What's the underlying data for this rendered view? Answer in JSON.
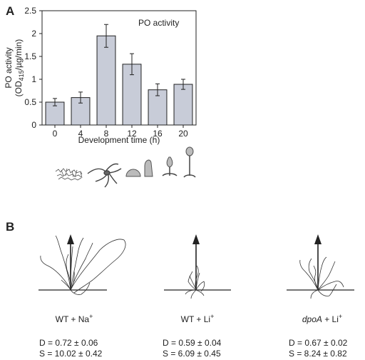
{
  "panel_a": {
    "label": "A"
  },
  "panel_b": {
    "label": "B"
  },
  "chart_data": {
    "type": "bar",
    "title": "PO activity",
    "xlabel": "Development  time (h)",
    "ylabel_line1": "PO activity",
    "ylabel_line2_prefix": "(OD",
    "ylabel_line2_sub": "415",
    "ylabel_line2_suffix": "/µg/min)",
    "categories": [
      "0",
      "4",
      "8",
      "12",
      "16",
      "20"
    ],
    "values": [
      0.5,
      0.6,
      1.95,
      1.33,
      0.77,
      0.89
    ],
    "errors": [
      0.08,
      0.12,
      0.25,
      0.23,
      0.13,
      0.11
    ],
    "ylim": [
      0,
      2.5
    ],
    "yticks": [
      0,
      0.5,
      1,
      1.5,
      2,
      2.5
    ],
    "ytick_labels": [
      "0",
      "0.5",
      "1",
      "1.5",
      "2",
      "2.5"
    ],
    "bar_color": "#c8ccd8",
    "grid": false
  },
  "trajectory_plots": [
    {
      "caption": "WT + Na",
      "caption_italic": "",
      "caption_sup": "+",
      "d_stat": "D = 0.72 ± 0.06",
      "s_stat": "S = 10.02 ± 0.42"
    },
    {
      "caption": "WT + Li",
      "caption_italic": "",
      "caption_sup": "+",
      "d_stat": "D = 0.59 ± 0.04",
      "s_stat": "S = 6.09 ± 0.45"
    },
    {
      "caption": "  + Li",
      "caption_italic": "dpoA",
      "caption_sup": "+",
      "d_stat": "D = 0.67 ± 0.02",
      "s_stat": "S = 8.24 ± 0.82"
    }
  ]
}
